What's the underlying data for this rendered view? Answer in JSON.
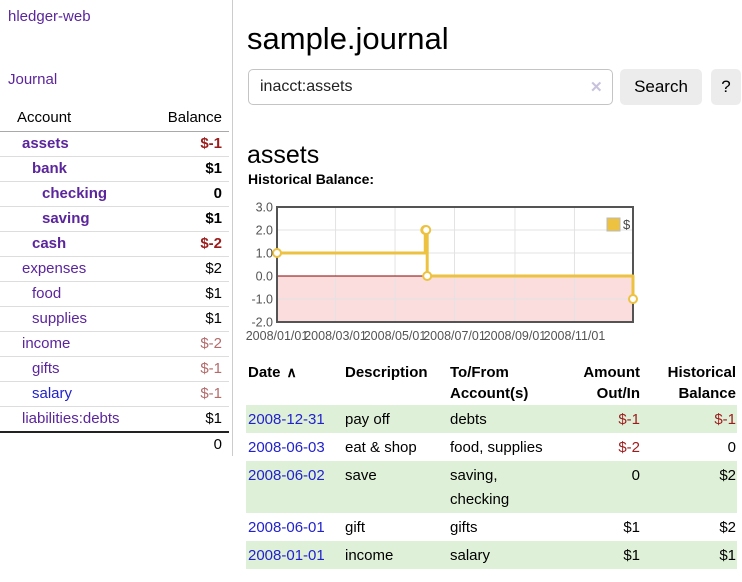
{
  "colors": {
    "link_purple": "#5b259c",
    "link_blue": "#2222cc",
    "negative_strong": "#9b1c1c",
    "negative_soft": "#b36b6b",
    "row_shade_green": "#dff0d8",
    "chart_series_gold": "#edc240"
  },
  "sidebar": {
    "brand": "hledger-web",
    "journal_link": "Journal",
    "accounts_table": {
      "headers": {
        "account": "Account",
        "balance": "Balance"
      },
      "rows": [
        {
          "name": "assets",
          "depth": 1,
          "bold": true,
          "balance": "$-1",
          "tone": "neg-strong",
          "link": "purple"
        },
        {
          "name": "bank",
          "depth": 2,
          "bold": true,
          "balance": "$1",
          "tone": "normal",
          "link": "purple"
        },
        {
          "name": "checking",
          "depth": 3,
          "bold": true,
          "balance": "0",
          "tone": "normal",
          "link": "purple"
        },
        {
          "name": "saving",
          "depth": 3,
          "bold": true,
          "balance": "$1",
          "tone": "normal",
          "link": "purple"
        },
        {
          "name": "cash",
          "depth": 2,
          "bold": true,
          "balance": "$-2",
          "tone": "neg-strong",
          "link": "purple"
        },
        {
          "name": "expenses",
          "depth": 1,
          "bold": false,
          "balance": "$2",
          "tone": "normal",
          "link": "purple"
        },
        {
          "name": "food",
          "depth": 2,
          "bold": false,
          "balance": "$1",
          "tone": "normal",
          "link": "purple"
        },
        {
          "name": "supplies",
          "depth": 2,
          "bold": false,
          "balance": "$1",
          "tone": "normal",
          "link": "purple"
        },
        {
          "name": "income",
          "depth": 1,
          "bold": false,
          "balance": "$-2",
          "tone": "neg-soft",
          "link": "purple"
        },
        {
          "name": "gifts",
          "depth": 2,
          "bold": false,
          "balance": "$-1",
          "tone": "neg-soft",
          "link": "purple"
        },
        {
          "name": "salary",
          "depth": 2,
          "bold": false,
          "balance": "$-1",
          "tone": "neg-soft",
          "link": "blue"
        },
        {
          "name": "liabilities:debts",
          "depth": 1,
          "bold": false,
          "balance": "$1",
          "tone": "normal",
          "link": "purple"
        }
      ],
      "total_balance": "0"
    }
  },
  "main": {
    "title": "sample.journal",
    "search": {
      "value": "inacct:assets",
      "clear_icon": "✕",
      "button_label": "Search",
      "help_label": "?"
    },
    "account_heading": "assets",
    "chart_label": "Historical Balance:",
    "register_table": {
      "sort_icon": "∧",
      "headers": [
        {
          "line1": "Date",
          "line2": "",
          "align": "left",
          "sorted": true
        },
        {
          "line1": "Description",
          "line2": "",
          "align": "left"
        },
        {
          "line1": "To/From",
          "line2": "Account(s)",
          "align": "left"
        },
        {
          "line1": "Amount",
          "line2": "Out/In",
          "align": "right"
        },
        {
          "line1": "Historical",
          "line2": "Balance",
          "align": "right"
        }
      ],
      "rows": [
        {
          "date": "2008-12-31",
          "description": "pay off",
          "accounts": "debts",
          "amount": "$-1",
          "balance": "$-1",
          "shaded": true
        },
        {
          "date": "2008-06-03",
          "description": "eat & shop",
          "accounts": "food, supplies",
          "amount": "$-2",
          "balance": "0",
          "shaded": false
        },
        {
          "date": "2008-06-02",
          "description": "save",
          "accounts": "saving,\nchecking",
          "amount": "0",
          "balance": "$2",
          "shaded": true
        },
        {
          "date": "2008-06-01",
          "description": "gift",
          "accounts": "gifts",
          "amount": "$1",
          "balance": "$2",
          "shaded": false
        },
        {
          "date": "2008-01-01",
          "description": "income",
          "accounts": "salary",
          "amount": "$1",
          "balance": "$1",
          "shaded": true
        }
      ]
    }
  },
  "chart_data": {
    "type": "line",
    "step": true,
    "title": "Historical Balance",
    "series": [
      {
        "name": "$",
        "color": "#edc240",
        "points": [
          [
            "2008-01-01",
            1
          ],
          [
            "2008-06-01",
            2
          ],
          [
            "2008-06-02",
            2
          ],
          [
            "2008-06-03",
            0
          ],
          [
            "2008-12-31",
            -1
          ]
        ]
      }
    ],
    "x_range": [
      "2008-01-01",
      "2008-12-31"
    ],
    "x_ticks": [
      "2008/01/01",
      "2008/03/01",
      "2008/05/01",
      "2008/07/01",
      "2008/09/01",
      "2008/11/01"
    ],
    "y_ticks": [
      -2,
      -1,
      0,
      1,
      2,
      3
    ],
    "ylim": [
      -2,
      3
    ],
    "grid": true,
    "legend_position": "top-right",
    "negative_region_color": "#fbdddd",
    "zero_line_color": "#8b0000",
    "grid_color": "#e3e3e3",
    "border_color": "#545454",
    "tick_label_color": "#545454"
  }
}
